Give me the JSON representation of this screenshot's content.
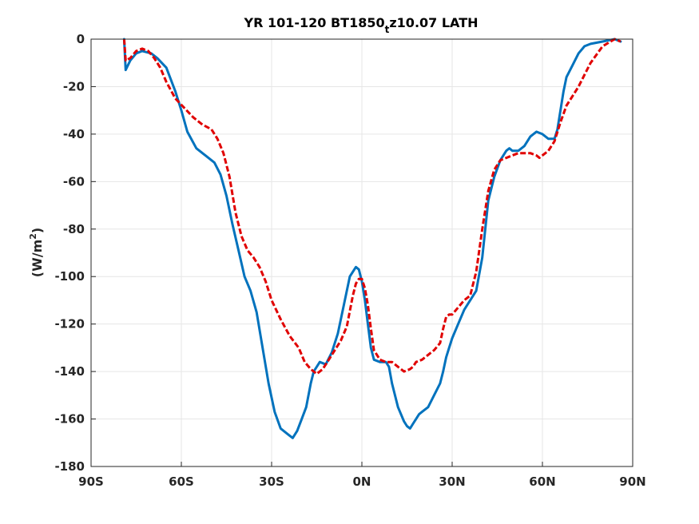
{
  "chart_data": {
    "type": "line",
    "title_main": "YR 101-120 BT1850",
    "title_sub": "t",
    "title_tail": "z10.07 LATH",
    "ylabel_main": "(W/m",
    "ylabel_sup": "2",
    "ylabel_close": ")",
    "xlim": [
      -90,
      90
    ],
    "ylim": [
      -180,
      0
    ],
    "xticks": [
      -90,
      -60,
      -30,
      0,
      30,
      60,
      90
    ],
    "xtick_labels": [
      "90S",
      "60S",
      "30S",
      "0N",
      "30N",
      "60N",
      "90N"
    ],
    "yticks": [
      0,
      -20,
      -40,
      -60,
      -80,
      -100,
      -120,
      -140,
      -160,
      -180
    ],
    "ytick_labels": [
      "0",
      "-20",
      "-40",
      "-60",
      "-80",
      "-100",
      "-120",
      "-140",
      "-160",
      "-180"
    ],
    "grid": true,
    "colors": {
      "blue": "#0072bd",
      "red": "#e00000",
      "axis": "#262626",
      "grid": "#e6e6e6"
    },
    "series": [
      {
        "color": "#0072bd",
        "style": "solid",
        "x": [
          -79,
          -78.5,
          -77,
          -75,
          -73,
          -70,
          -68,
          -65,
          -62,
          -60,
          -58,
          -55,
          -52,
          -49,
          -47,
          -45,
          -43,
          -41,
          -39,
          -37,
          -35,
          -33,
          -31,
          -29,
          -27,
          -25,
          -24,
          -23,
          -21.5,
          -20,
          -18.5,
          -17,
          -16,
          -15,
          -14,
          -12,
          -10,
          -8,
          -6,
          -4,
          -2,
          -1,
          0,
          1,
          2,
          3,
          4,
          6,
          8,
          9,
          10,
          12,
          14,
          15,
          16,
          17,
          18,
          19,
          20,
          22,
          24,
          26,
          27,
          28,
          29,
          30,
          32,
          34,
          36,
          38,
          40,
          42,
          44,
          46,
          48,
          49,
          50,
          52,
          54,
          56,
          58,
          60,
          62,
          64,
          65,
          66,
          67,
          68,
          70,
          72,
          74,
          76,
          80,
          84,
          86
        ],
        "y": [
          0,
          -13,
          -9,
          -6,
          -5,
          -6,
          -8,
          -12,
          -22,
          -30,
          -39,
          -46,
          -49,
          -52,
          -57,
          -66,
          -78,
          -89,
          -100,
          -106,
          -115,
          -130,
          -145,
          -157,
          -164,
          -166,
          -167,
          -168,
          -165,
          -160,
          -155,
          -145,
          -140,
          -138,
          -136,
          -137,
          -132,
          -124,
          -112,
          -100,
          -96,
          -97,
          -102,
          -110,
          -120,
          -130,
          -135,
          -136,
          -136,
          -138,
          -145,
          -155,
          -161,
          -163,
          -164,
          -162,
          -160,
          -158,
          -157,
          -155,
          -150,
          -145,
          -140,
          -134,
          -130,
          -126,
          -120,
          -114,
          -110,
          -106,
          -92,
          -68,
          -58,
          -51,
          -47,
          -46,
          -47,
          -47,
          -45,
          -41,
          -39,
          -40,
          -42,
          -42,
          -38,
          -30,
          -22,
          -16,
          -11,
          -6,
          -3,
          -2,
          -1,
          0,
          -1
        ]
      },
      {
        "color": "#e00000",
        "style": "dashed",
        "x": [
          -79,
          -78.5,
          -77,
          -75,
          -73,
          -71,
          -69,
          -67,
          -65,
          -62,
          -59,
          -56,
          -53,
          -50,
          -48,
          -46,
          -44,
          -42,
          -40,
          -38,
          -36,
          -34,
          -32,
          -30,
          -27,
          -24,
          -21,
          -19,
          -17,
          -15,
          -13,
          -11,
          -9,
          -7,
          -5,
          -3,
          -2,
          -1,
          0,
          1,
          2,
          3,
          4,
          6,
          8,
          10,
          12,
          13,
          14,
          16,
          17,
          18,
          20,
          22,
          24,
          26,
          27,
          28,
          29,
          30,
          32,
          34,
          36,
          38,
          40,
          42,
          44,
          46,
          48,
          50,
          52,
          54,
          56,
          58,
          59,
          60,
          62,
          64,
          66,
          68,
          70,
          72,
          74,
          76,
          80,
          84,
          86
        ],
        "y": [
          0,
          -9,
          -8,
          -5,
          -4,
          -5,
          -8,
          -12,
          -18,
          -25,
          -29,
          -33,
          -36,
          -38,
          -42,
          -48,
          -58,
          -73,
          -83,
          -89,
          -92,
          -96,
          -102,
          -110,
          -118,
          -125,
          -130,
          -136,
          -139,
          -141,
          -139,
          -135,
          -131,
          -127,
          -121,
          -108,
          -103,
          -101,
          -101,
          -105,
          -112,
          -122,
          -131,
          -135,
          -136,
          -136,
          -138,
          -139,
          -140,
          -139,
          -138,
          -136,
          -135,
          -133,
          -131,
          -128,
          -122,
          -117,
          -116,
          -116,
          -113,
          -110,
          -108,
          -98,
          -80,
          -64,
          -55,
          -51,
          -50,
          -49,
          -48,
          -48,
          -48,
          -49,
          -50,
          -49,
          -47,
          -43,
          -35,
          -28,
          -24,
          -20,
          -15,
          -10,
          -3,
          0,
          -1
        ]
      }
    ]
  }
}
